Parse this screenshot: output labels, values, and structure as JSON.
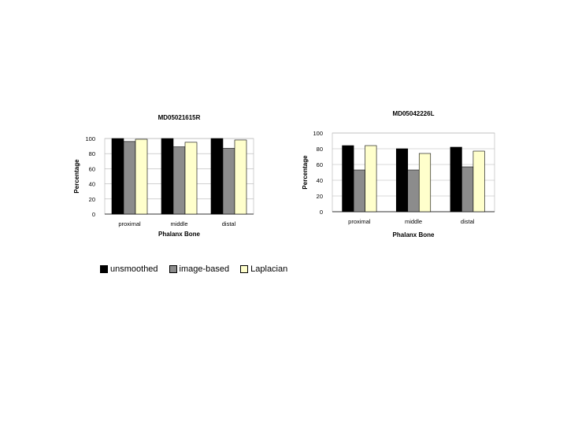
{
  "chart_data": [
    {
      "type": "bar",
      "title": "MD05021615R",
      "xlabel": "Phalanx Bone",
      "ylabel": "Percentage",
      "categories": [
        "proximal",
        "middle",
        "distal"
      ],
      "ylim": [
        0,
        100
      ],
      "yticks": [
        0,
        20,
        40,
        60,
        80,
        100
      ],
      "series": [
        {
          "name": "unsmoothed",
          "values": [
            100,
            100,
            100
          ]
        },
        {
          "name": "image-based",
          "values": [
            96,
            89,
            87
          ]
        },
        {
          "name": "Laplacian",
          "values": [
            99,
            95,
            98
          ]
        }
      ],
      "grid": true
    },
    {
      "type": "bar",
      "title": "MD05042226L",
      "xlabel": "Phalanx Bone",
      "ylabel": "Percentage",
      "categories": [
        "proximal",
        "middle",
        "distal"
      ],
      "ylim": [
        0,
        100
      ],
      "yticks": [
        0,
        20,
        40,
        60,
        80,
        100
      ],
      "series": [
        {
          "name": "unsmoothed",
          "values": [
            84,
            80,
            82
          ]
        },
        {
          "name": "image-based",
          "values": [
            53,
            53,
            57
          ]
        },
        {
          "name": "Laplacian",
          "values": [
            84,
            74,
            77
          ]
        }
      ],
      "grid": true
    }
  ],
  "colors": {
    "unsmoothed": "#000000",
    "image-based": "#8c8c8c",
    "Laplacian": "#ffffcc"
  },
  "legend": [
    {
      "label": "unsmoothed",
      "color": "#000000"
    },
    {
      "label": "image-based",
      "color": "#8c8c8c"
    },
    {
      "label": "Laplacian",
      "color": "#ffffcc"
    }
  ]
}
